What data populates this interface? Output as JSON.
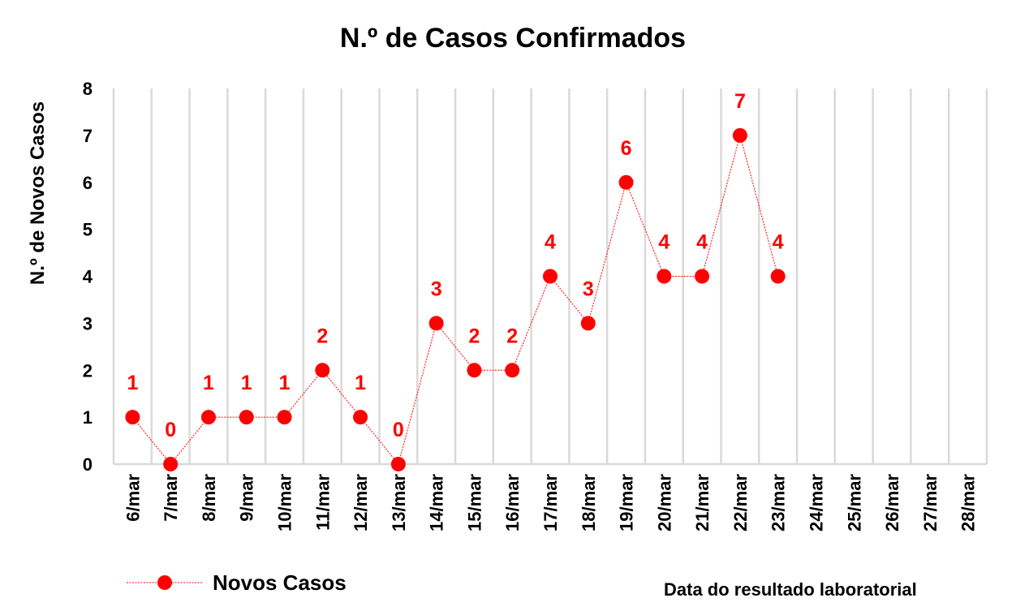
{
  "chart_data": {
    "type": "line",
    "title": "N.º de Casos Confirmados",
    "ylabel": "N.º de Novos Casos",
    "xlabel": "Data do resultado laboratorial",
    "categories": [
      "6/mar",
      "7/mar",
      "8/mar",
      "9/mar",
      "10/mar",
      "11/mar",
      "12/mar",
      "13/mar",
      "14/mar",
      "15/mar",
      "16/mar",
      "17/mar",
      "18/mar",
      "19/mar",
      "20/mar",
      "21/mar",
      "22/mar",
      "23/mar",
      "24/mar",
      "25/mar",
      "26/mar",
      "27/mar",
      "28/mar"
    ],
    "ylim": [
      0,
      8
    ],
    "yticks": [
      "0",
      "1",
      "2",
      "3",
      "4",
      "5",
      "6",
      "7",
      "8"
    ],
    "grid": "vertical",
    "legend_position": "bottom-left",
    "series": [
      {
        "name": "Novos Casos",
        "color": "#ff0000",
        "values": [
          1,
          0,
          1,
          1,
          1,
          2,
          1,
          0,
          3,
          2,
          2,
          4,
          3,
          6,
          4,
          4,
          7,
          4,
          null,
          null,
          null,
          null,
          null
        ]
      }
    ]
  }
}
